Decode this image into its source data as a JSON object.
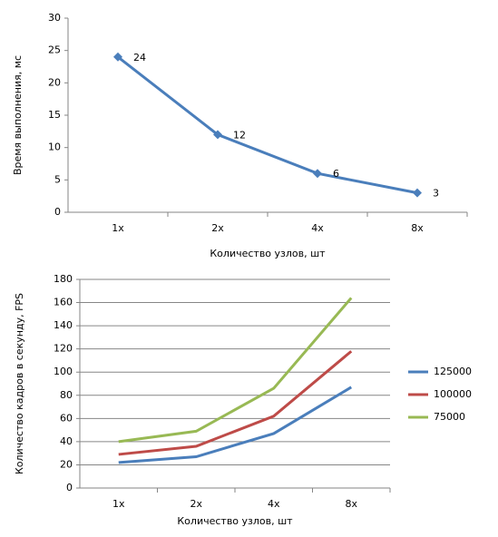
{
  "chart_data": [
    {
      "type": "line",
      "y_label": "Время выполнения, мс",
      "x_label": "Количество узлов, шт",
      "categories": [
        "1x",
        "2x",
        "4x",
        "8x"
      ],
      "series": [
        {
          "color": "#4a7ebb",
          "values": [
            24,
            12,
            6,
            3
          ]
        }
      ],
      "ylim": [
        0,
        30
      ],
      "yticks": [
        0,
        5,
        10,
        15,
        20,
        25,
        30
      ],
      "grid": false,
      "markers": "diamond",
      "data_labels": true
    },
    {
      "type": "line",
      "y_label": "Количество кадров в секунду, FPS",
      "x_label": "Количество узлов, шт",
      "categories": [
        "1x",
        "2x",
        "4x",
        "8x"
      ],
      "series": [
        {
          "name": "125000",
          "color": "#4a7ebb",
          "values": [
            22,
            27,
            47,
            87
          ]
        },
        {
          "name": "100000",
          "color": "#be4b48",
          "values": [
            29,
            36,
            62,
            118
          ]
        },
        {
          "name": "75000",
          "color": "#98b954",
          "values": [
            40,
            49,
            86,
            164
          ]
        }
      ],
      "ylim": [
        0,
        180
      ],
      "yticks": [
        0,
        20,
        40,
        60,
        80,
        100,
        120,
        140,
        160,
        180
      ],
      "grid": true,
      "legend": "right"
    }
  ]
}
